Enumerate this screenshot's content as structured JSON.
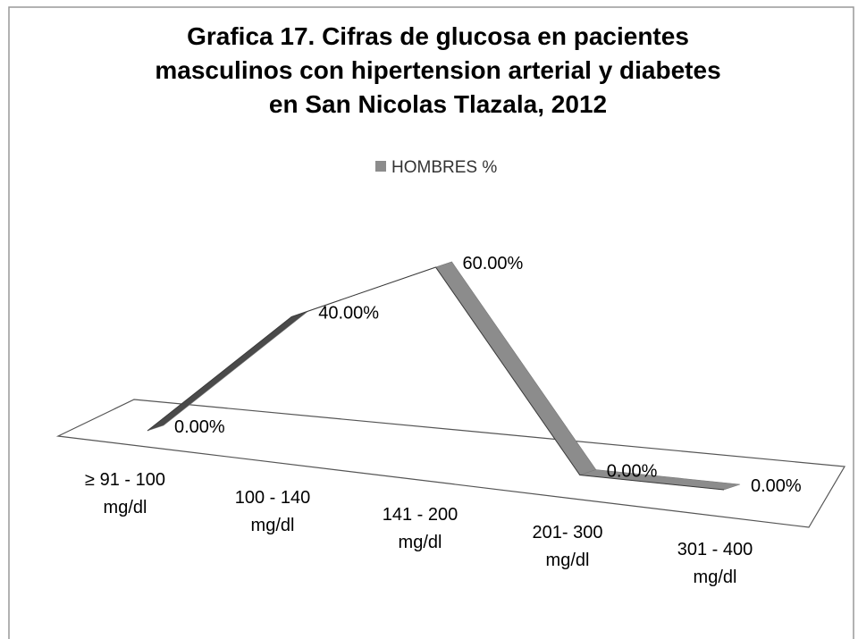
{
  "chart_data": {
    "type": "line3d",
    "title": [
      "Grafica 17. Cifras de glucosa en pacientes",
      "masculinos con hipertension arterial y diabetes",
      "en San Nicolas Tlazala, 2012"
    ],
    "categories": [
      "≥ 91 - 100 mg/dl",
      "100 - 140 mg/dl",
      "141 - 200 mg/dl",
      "201- 300 mg/dl",
      "301 - 400 mg/dl"
    ],
    "series": [
      {
        "name": "HOMBRES %",
        "color": "#8c8c8c",
        "values": [
          0,
          40,
          60,
          0,
          0
        ],
        "value_labels": [
          "0.00%",
          "40.00%",
          "60.00%",
          "0.00%",
          "0.00%"
        ]
      }
    ],
    "legend": "top"
  }
}
